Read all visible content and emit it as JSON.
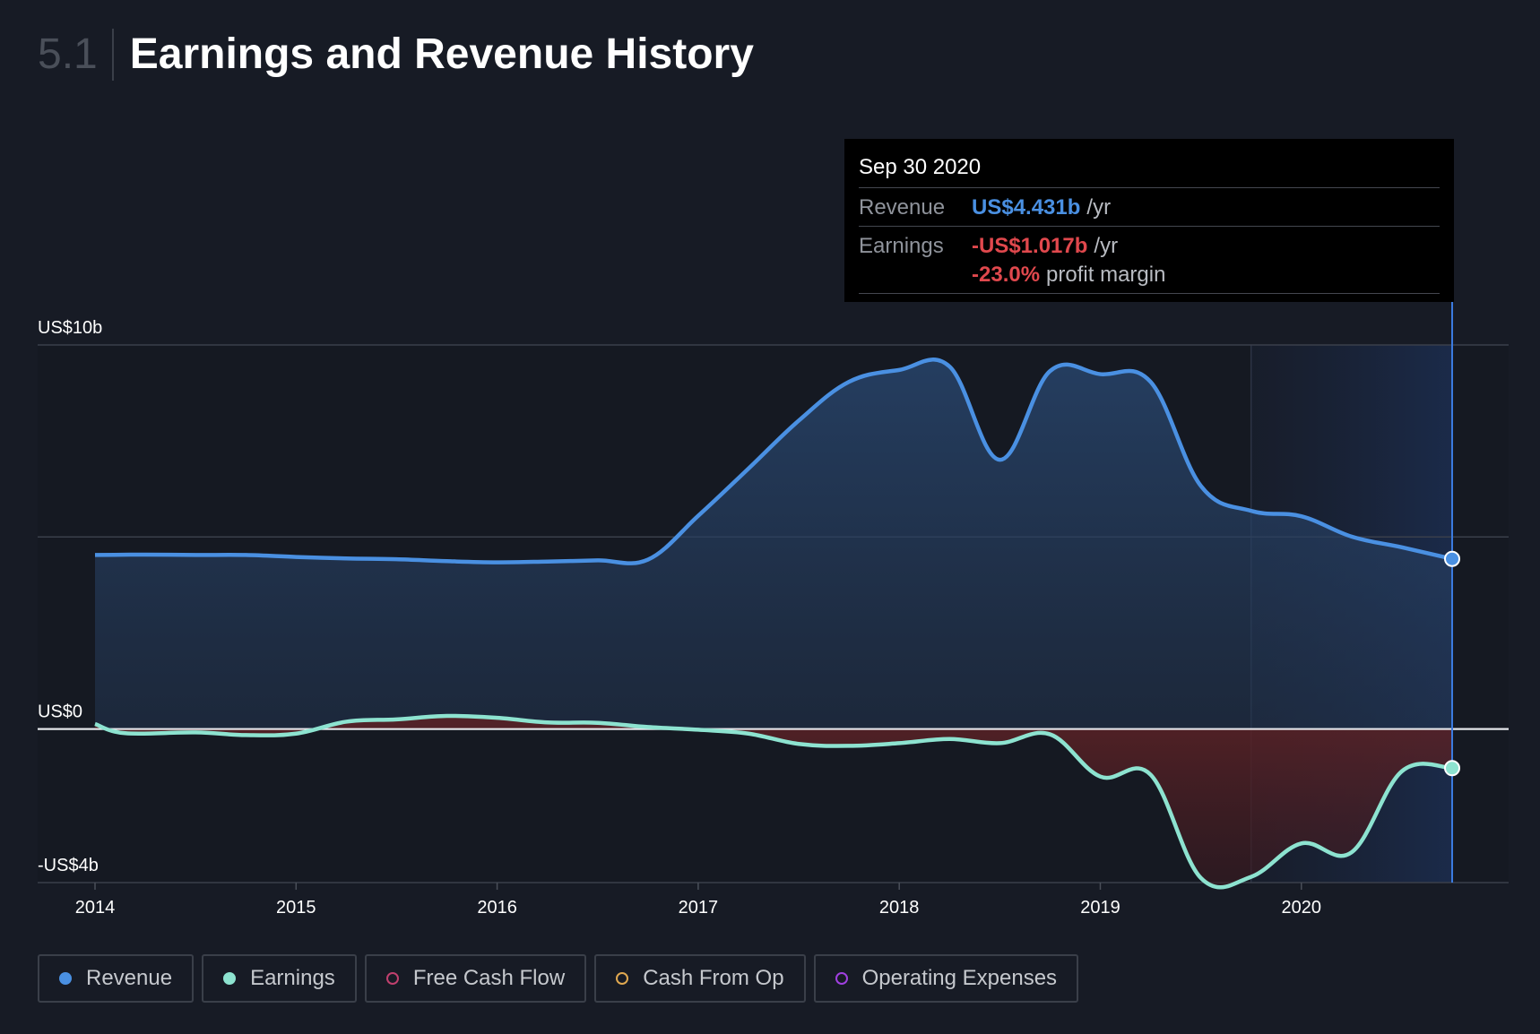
{
  "header": {
    "section_number": "5.1",
    "title": "Earnings and Revenue History"
  },
  "tooltip": {
    "date": "Sep 30 2020",
    "revenue_label": "Revenue",
    "revenue_value": "US$4.431b",
    "revenue_unit": "/yr",
    "earnings_label": "Earnings",
    "earnings_value": "-US$1.017b",
    "earnings_unit": "/yr",
    "margin_value": "-23.0%",
    "margin_label": "profit margin"
  },
  "legend": [
    {
      "label": "Revenue",
      "color": "#4a90e2",
      "filled": true
    },
    {
      "label": "Earnings",
      "color": "#8de3d0",
      "filled": true
    },
    {
      "label": "Free Cash Flow",
      "color": "#c0406e",
      "filled": false
    },
    {
      "label": "Cash From Op",
      "color": "#e0a850",
      "filled": false
    },
    {
      "label": "Operating Expenses",
      "color": "#a040e0",
      "filled": false
    }
  ],
  "chart_data": {
    "type": "area",
    "title": "Earnings and Revenue History",
    "y_tick_labels": [
      "US$10b",
      "US$0",
      "-US$4b"
    ],
    "y_ticks": [
      10,
      5,
      0,
      -4
    ],
    "ylim": [
      -4,
      10
    ],
    "xlim": [
      2014.0,
      2021.05
    ],
    "x_tick_labels": [
      "2014",
      "2015",
      "2016",
      "2017",
      "2018",
      "2019",
      "2020"
    ],
    "x_ticks": [
      2014,
      2015,
      2016,
      2017,
      2018,
      2019,
      2020
    ],
    "forecast_shade_start": 2019.75,
    "highlight_x": 2020.75,
    "grid": true,
    "legend_position": "bottom",
    "series": [
      {
        "name": "Revenue",
        "color": "#4a90e2",
        "x": [
          2014.0,
          2014.25,
          2014.5,
          2014.75,
          2015.0,
          2015.25,
          2015.5,
          2015.75,
          2016.0,
          2016.25,
          2016.5,
          2016.75,
          2017.0,
          2017.25,
          2017.5,
          2017.75,
          2018.0,
          2018.25,
          2018.5,
          2018.75,
          2019.0,
          2019.25,
          2019.5,
          2019.75,
          2020.0,
          2020.25,
          2020.5,
          2020.75
        ],
        "values": [
          4.53,
          4.54,
          4.53,
          4.53,
          4.48,
          4.44,
          4.42,
          4.37,
          4.34,
          4.36,
          4.39,
          4.41,
          5.55,
          6.78,
          8.03,
          9.04,
          9.35,
          9.44,
          7.01,
          9.32,
          9.24,
          9.04,
          6.33,
          5.68,
          5.54,
          5.01,
          4.73,
          4.43
        ]
      },
      {
        "name": "Earnings",
        "color": "#8de3d0",
        "x": [
          2014.0,
          2014.15,
          2014.5,
          2014.75,
          2015.0,
          2015.25,
          2015.5,
          2015.75,
          2016.0,
          2016.25,
          2016.5,
          2016.75,
          2017.0,
          2017.25,
          2017.5,
          2017.75,
          2018.0,
          2018.25,
          2018.5,
          2018.75,
          2019.0,
          2019.25,
          2019.5,
          2019.75,
          2020.0,
          2020.25,
          2020.5,
          2020.75
        ],
        "values": [
          0.13,
          -0.11,
          -0.09,
          -0.16,
          -0.12,
          0.19,
          0.25,
          0.34,
          0.29,
          0.17,
          0.16,
          0.05,
          -0.02,
          -0.12,
          -0.39,
          -0.44,
          -0.37,
          -0.26,
          -0.37,
          -0.14,
          -1.24,
          -1.19,
          -3.88,
          -3.85,
          -2.98,
          -3.21,
          -1.1,
          -1.02
        ]
      }
    ]
  }
}
